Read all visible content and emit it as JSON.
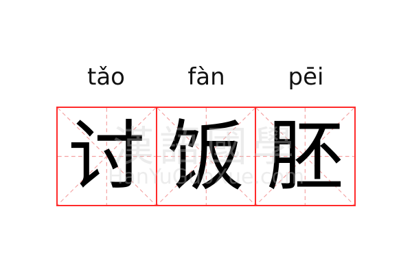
{
  "word": [
    {
      "pinyin": "tǎo",
      "char": "讨"
    },
    {
      "pinyin": "fàn",
      "char": "饭"
    },
    {
      "pinyin": "pēi",
      "char": "胚"
    }
  ],
  "watermark": {
    "text": "漢語國學",
    "url": "HanYuGuoXue.com"
  },
  "colors": {
    "grid": "#ff2a2a",
    "guide": "#f4a0a0"
  }
}
